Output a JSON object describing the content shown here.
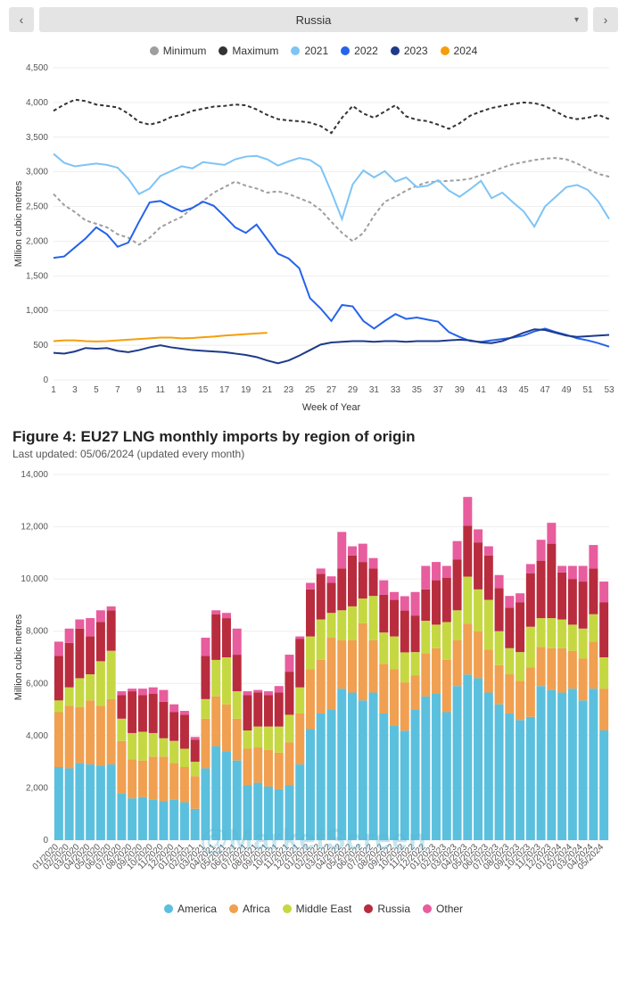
{
  "nav": {
    "selected": "Russia"
  },
  "line_chart": {
    "type": "line",
    "ylabel": "Million cubic metres",
    "xlabel": "Week of Year",
    "ylim": [
      0,
      4500
    ],
    "ytick_step": 500,
    "xlim": [
      1,
      53
    ],
    "xtick_step": 2,
    "background_color": "#ffffff",
    "grid_color": "#e8e8e8",
    "legend": [
      {
        "label": "Minimum",
        "color": "#9e9e9e",
        "dash": true
      },
      {
        "label": "Maximum",
        "color": "#333333",
        "dash": true
      },
      {
        "label": "2021",
        "color": "#7ec4f5",
        "dash": false
      },
      {
        "label": "2022",
        "color": "#2563eb",
        "dash": false
      },
      {
        "label": "2023",
        "color": "#1e3a8a",
        "dash": false
      },
      {
        "label": "2024",
        "color": "#f59e0b",
        "dash": false
      }
    ],
    "series": {
      "Minimum": [
        2680,
        2520,
        2420,
        2300,
        2250,
        2200,
        2100,
        2050,
        1950,
        2050,
        2200,
        2280,
        2350,
        2480,
        2580,
        2700,
        2780,
        2860,
        2800,
        2760,
        2700,
        2720,
        2680,
        2620,
        2560,
        2450,
        2280,
        2120,
        2000,
        2120,
        2370,
        2570,
        2640,
        2730,
        2800,
        2850,
        2860,
        2870,
        2880,
        2900,
        2950,
        3000,
        3060,
        3110,
        3140,
        3170,
        3190,
        3200,
        3180,
        3120,
        3040,
        2970,
        2930
      ],
      "Maximum": [
        3880,
        3970,
        4040,
        4020,
        3970,
        3950,
        3930,
        3840,
        3720,
        3680,
        3720,
        3790,
        3820,
        3880,
        3910,
        3940,
        3950,
        3970,
        3960,
        3900,
        3820,
        3760,
        3740,
        3730,
        3710,
        3660,
        3560,
        3780,
        3950,
        3840,
        3780,
        3870,
        3960,
        3800,
        3750,
        3730,
        3680,
        3620,
        3700,
        3810,
        3870,
        3920,
        3950,
        3980,
        4000,
        3990,
        3950,
        3870,
        3790,
        3760,
        3780,
        3820,
        3760
      ],
      "2021": [
        3260,
        3130,
        3080,
        3100,
        3120,
        3100,
        3060,
        2900,
        2680,
        2760,
        2940,
        3010,
        3080,
        3050,
        3140,
        3120,
        3100,
        3180,
        3220,
        3230,
        3180,
        3090,
        3150,
        3200,
        3170,
        3070,
        2710,
        2320,
        2820,
        3020,
        2920,
        3010,
        2860,
        2920,
        2780,
        2800,
        2880,
        2730,
        2640,
        2750,
        2870,
        2620,
        2700,
        2560,
        2430,
        2210,
        2500,
        2640,
        2780,
        2810,
        2740,
        2570,
        2320
      ],
      "2022": [
        1760,
        1780,
        1910,
        2040,
        2200,
        2100,
        1920,
        1980,
        2280,
        2560,
        2580,
        2500,
        2430,
        2480,
        2570,
        2510,
        2360,
        2200,
        2120,
        2240,
        2030,
        1820,
        1750,
        1610,
        1180,
        1030,
        850,
        1080,
        1060,
        850,
        740,
        850,
        950,
        880,
        900,
        870,
        840,
        690,
        620,
        560,
        550,
        570,
        590,
        610,
        640,
        700,
        740,
        690,
        650,
        600,
        570,
        530,
        480
      ],
      "2023": [
        390,
        380,
        410,
        460,
        450,
        460,
        420,
        400,
        430,
        470,
        500,
        470,
        450,
        430,
        420,
        410,
        400,
        380,
        360,
        330,
        280,
        240,
        280,
        350,
        430,
        510,
        540,
        550,
        560,
        560,
        550,
        560,
        560,
        550,
        560,
        560,
        560,
        570,
        580,
        570,
        540,
        530,
        560,
        620,
        680,
        730,
        720,
        680,
        640,
        620,
        630,
        640,
        650
      ],
      "2024": [
        560,
        570,
        570,
        560,
        555,
        560,
        570,
        580,
        590,
        600,
        610,
        610,
        600,
        605,
        615,
        625,
        640,
        650,
        660,
        670,
        680
      ]
    }
  },
  "figure2": {
    "title": "Figure 4: EU27 LNG monthly imports by region of origin",
    "subtitle": "Last updated: 05/06/2024 (updated every month)"
  },
  "bar_chart": {
    "type": "stacked-bar",
    "ylabel": "Million cubic metres",
    "ylim": [
      0,
      14000
    ],
    "ytick_step": 2000,
    "background_color": "#ffffff",
    "bar_gap": 0.15,
    "legend": [
      {
        "label": "America",
        "color": "#5bc0de"
      },
      {
        "label": "Africa",
        "color": "#f0a050"
      },
      {
        "label": "Middle East",
        "color": "#c5d842"
      },
      {
        "label": "Russia",
        "color": "#b82c3e"
      },
      {
        "label": "Other",
        "color": "#e85d9e"
      }
    ],
    "categories": [
      "01/2020",
      "02/2020",
      "03/2020",
      "04/2020",
      "05/2020",
      "06/2020",
      "07/2020",
      "08/2020",
      "09/2020",
      "10/2020",
      "11/2020",
      "12/2020",
      "01/2021",
      "02/2021",
      "03/2021",
      "04/2021",
      "05/2021",
      "06/2021",
      "07/2021",
      "08/2021",
      "09/2021",
      "10/2021",
      "11/2021",
      "12/2021",
      "01/2022",
      "02/2022",
      "03/2022",
      "04/2022",
      "05/2022",
      "06/2022",
      "07/2022",
      "08/2022",
      "09/2022",
      "10/2022",
      "11/2022",
      "12/2022",
      "01/2023",
      "02/2023",
      "03/2023",
      "04/2023",
      "05/2023",
      "06/2023",
      "07/2023",
      "08/2023",
      "09/2023",
      "10/2023",
      "11/2023",
      "12/2023",
      "01/2024",
      "02/2024",
      "03/2024",
      "04/2024",
      "05/2024"
    ],
    "stacks": {
      "America": [
        2800,
        2750,
        2950,
        2900,
        2850,
        2900,
        1800,
        1600,
        1650,
        1550,
        1500,
        1550,
        1450,
        1200,
        2750,
        3600,
        3400,
        3050,
        2100,
        2200,
        2050,
        1950,
        2100,
        2900,
        4250,
        4850,
        5000,
        5800,
        5650,
        5350,
        5650,
        4850,
        4400,
        4190,
        5000,
        5500,
        5600,
        4900,
        5900,
        6340,
        6200,
        5650,
        5200,
        4850,
        4600,
        4720,
        5900,
        5750,
        5650,
        5800,
        5350,
        5800,
        4200
      ],
      "Africa": [
        2100,
        2400,
        2150,
        2450,
        2300,
        2500,
        2000,
        1500,
        1400,
        1650,
        1700,
        1400,
        1350,
        1250,
        1900,
        1900,
        1800,
        1600,
        1400,
        1350,
        1400,
        1400,
        1650,
        1950,
        2300,
        2050,
        2750,
        1850,
        2000,
        2950,
        2000,
        1900,
        2150,
        1850,
        1300,
        1650,
        1750,
        2000,
        1750,
        1950,
        1800,
        1650,
        1500,
        1500,
        1500,
        1900,
        1500,
        1600,
        1700,
        1450,
        1600,
        1800,
        1600
      ],
      "Middle East": [
        450,
        700,
        1100,
        1000,
        1700,
        1850,
        850,
        1000,
        1100,
        900,
        700,
        850,
        700,
        550,
        750,
        1400,
        1800,
        1050,
        700,
        800,
        900,
        1000,
        1050,
        1000,
        1250,
        1550,
        950,
        1150,
        1300,
        950,
        1700,
        1200,
        1250,
        1150,
        900,
        1250,
        900,
        1450,
        1150,
        1800,
        1600,
        1900,
        1300,
        1000,
        1100,
        1550,
        1100,
        1150,
        1100,
        1000,
        1150,
        1050,
        1200
      ],
      "Russia": [
        1700,
        1700,
        1900,
        1450,
        1500,
        1550,
        900,
        1600,
        1400,
        1500,
        1400,
        1100,
        1300,
        850,
        1650,
        1750,
        1500,
        1400,
        1350,
        1300,
        1200,
        1300,
        1650,
        1850,
        1800,
        1750,
        1150,
        1600,
        1950,
        1400,
        1050,
        1450,
        1400,
        1600,
        1400,
        1200,
        1700,
        1700,
        1950,
        1950,
        1800,
        1700,
        1650,
        1550,
        1900,
        2050,
        2200,
        2850,
        1800,
        1750,
        1800,
        1750,
        2100
      ],
      "Other": [
        550,
        550,
        350,
        700,
        450,
        150,
        150,
        100,
        250,
        250,
        450,
        300,
        150,
        100,
        700,
        150,
        200,
        1000,
        150,
        100,
        150,
        250,
        650,
        100,
        250,
        200,
        250,
        1400,
        350,
        700,
        400,
        550,
        300,
        550,
        900,
        900,
        700,
        450,
        700,
        1100,
        500,
        350,
        500,
        450,
        350,
        350,
        800,
        800,
        250,
        500,
        600,
        900,
        800
      ]
    }
  },
  "watermark": "@MarketScreen"
}
